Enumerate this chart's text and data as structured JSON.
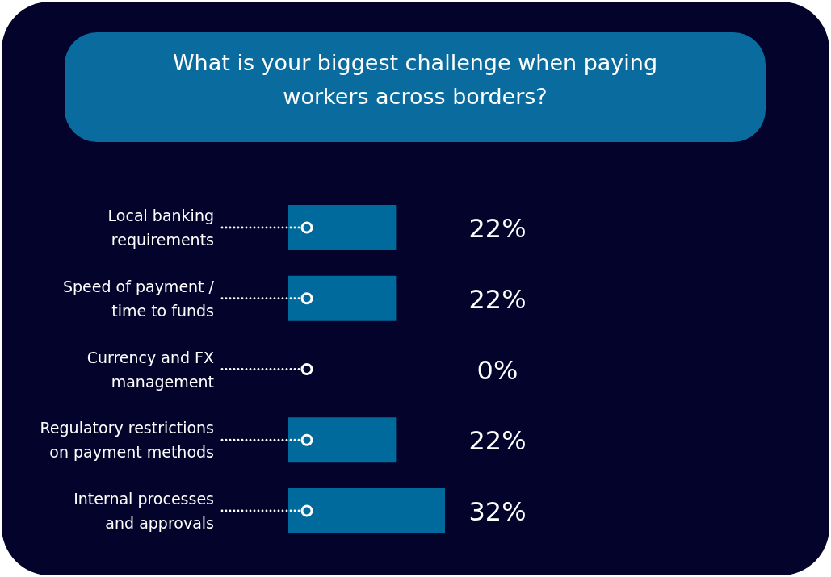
{
  "chart_data": {
    "type": "bar",
    "orientation": "horizontal",
    "title": "What is your biggest challenge when paying workers across borders?",
    "categories": [
      "Local banking\nrequirements",
      "Speed of payment /\ntime to funds",
      "Currency and FX\nmanagement",
      "Regulatory restrictions\non payment methods",
      "Internal processes\nand approvals"
    ],
    "values": [
      22,
      22,
      0,
      22,
      32
    ],
    "value_labels": [
      "22%",
      "22%",
      "0%",
      "22%",
      "32%"
    ],
    "color": "#006a9c"
  }
}
